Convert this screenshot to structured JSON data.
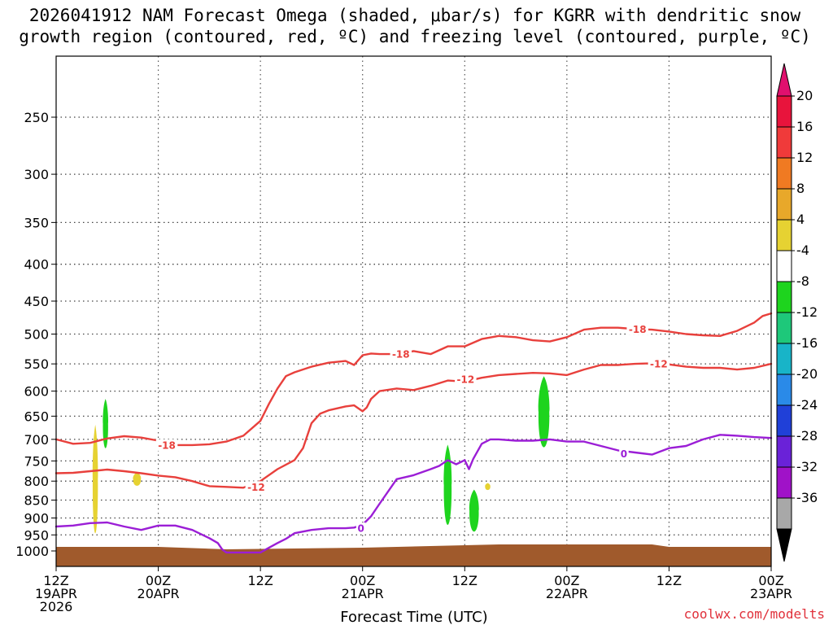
{
  "header": {
    "title_line1": "2026041912 NAM Forecast Omega (shaded, μbar/s) for KGRR with dendritic snow",
    "title_line2": "growth region (contoured, red, ºC) and freezing level (contoured, purple, ºC)"
  },
  "footer": {
    "xlabel": "Forecast Time (UTC)",
    "credit": "coolwx.com/modelts"
  },
  "chart_data": {
    "type": "contour",
    "title": "2026041912 NAM Forecast Omega (shaded, μbar/s) for KGRR with dendritic snow growth region (contoured, red, ºC) and freezing level (contoured, purple, ºC)",
    "xlabel": "Forecast Time (UTC)",
    "ylabel": "",
    "xlim": [
      0,
      84
    ],
    "ylim": [
      1050,
      200
    ],
    "y_scale": "log",
    "grid": true,
    "x_ticks": [
      {
        "hour": 0,
        "top": "12Z",
        "bottom": "19APR",
        "extra": "2026"
      },
      {
        "hour": 12,
        "top": "00Z",
        "bottom": "20APR"
      },
      {
        "hour": 24,
        "top": "12Z",
        "bottom": ""
      },
      {
        "hour": 36,
        "top": "00Z",
        "bottom": "21APR"
      },
      {
        "hour": 48,
        "top": "12Z",
        "bottom": ""
      },
      {
        "hour": 60,
        "top": "00Z",
        "bottom": "22APR"
      },
      {
        "hour": 72,
        "top": "12Z",
        "bottom": ""
      },
      {
        "hour": 84,
        "top": "00Z",
        "bottom": "23APR"
      }
    ],
    "y_ticks": [
      250,
      300,
      350,
      400,
      450,
      500,
      550,
      600,
      650,
      700,
      750,
      800,
      850,
      900,
      950,
      1000
    ],
    "contours": [
      {
        "level": -18,
        "label": "-18",
        "color": "#e8403c",
        "x": [
          0,
          2,
          4,
          6,
          8,
          10,
          12,
          14,
          16,
          18,
          20,
          22,
          24,
          25,
          26,
          27,
          28,
          30,
          32,
          34,
          35,
          36,
          37,
          38,
          40,
          42,
          44,
          46,
          48,
          50,
          52,
          54,
          56,
          58,
          60,
          62,
          64,
          66,
          68,
          70,
          72,
          74,
          76,
          78,
          80,
          82,
          83,
          84
        ],
        "y": [
          700,
          710,
          708,
          698,
          693,
          696,
          703,
          713,
          713,
          711,
          705,
          692,
          660,
          625,
          595,
          572,
          565,
          555,
          548,
          545,
          552,
          535,
          532,
          533,
          533,
          528,
          533,
          520,
          520,
          508,
          503,
          505,
          510,
          512,
          505,
          493,
          490,
          490,
          492,
          493,
          496,
          500,
          502,
          503,
          495,
          482,
          472,
          468
        ],
        "label_at": [
          {
            "x": 13,
            "y": 713
          },
          {
            "x": 40.5,
            "y": 533
          },
          {
            "x": 68.3,
            "y": 492
          }
        ]
      },
      {
        "level": -12,
        "label": "-12",
        "color": "#e8403c",
        "x": [
          0,
          2,
          4,
          6,
          8,
          10,
          12,
          14,
          16,
          18,
          20,
          22,
          24,
          26,
          28,
          29,
          30,
          31,
          32,
          34,
          35,
          36,
          36.5,
          37,
          38,
          40,
          42,
          44,
          46,
          48,
          50,
          52,
          54,
          56,
          58,
          60,
          62,
          64,
          66,
          68,
          70,
          72,
          74,
          76,
          78,
          80,
          82,
          84
        ],
        "y": [
          780,
          779,
          775,
          771,
          775,
          780,
          786,
          790,
          800,
          813,
          815,
          817,
          800,
          770,
          748,
          720,
          665,
          645,
          638,
          630,
          628,
          640,
          632,
          615,
          600,
          595,
          598,
          590,
          580,
          582,
          575,
          570,
          568,
          566,
          567,
          570,
          560,
          552,
          552,
          550,
          549,
          551,
          555,
          557,
          557,
          560,
          557,
          550
        ],
        "label_at": [
          {
            "x": 23.5,
            "y": 815
          },
          {
            "x": 48.1,
            "y": 578
          },
          {
            "x": 70.8,
            "y": 550
          }
        ]
      },
      {
        "level": 0,
        "label": "0",
        "color": "#9b1ed6",
        "x": [
          0,
          2,
          4,
          6,
          8,
          10,
          12,
          14,
          16,
          18,
          19,
          19.5,
          20,
          22,
          24,
          25,
          26,
          27,
          28,
          30,
          32,
          34,
          35,
          36,
          37,
          38,
          40,
          42,
          44,
          45,
          46,
          47,
          48,
          48.5,
          49,
          50,
          51,
          52,
          54,
          56,
          58,
          60,
          62,
          64,
          66,
          68,
          70,
          72,
          74,
          76,
          78,
          80,
          82,
          84
        ],
        "y": [
          925,
          922,
          915,
          913,
          925,
          935,
          922,
          922,
          935,
          960,
          975,
          995,
          1005,
          1005,
          1005,
          990,
          975,
          962,
          945,
          935,
          930,
          930,
          928,
          920,
          895,
          860,
          795,
          785,
          770,
          762,
          748,
          758,
          748,
          770,
          745,
          710,
          700,
          700,
          703,
          703,
          700,
          705,
          705,
          715,
          725,
          730,
          735,
          720,
          715,
          700,
          690,
          692,
          695,
          697
        ],
        "label_at": [
          {
            "x": 35.8,
            "y": 930
          },
          {
            "x": 66.7,
            "y": 733
          }
        ]
      }
    ],
    "shaded": [
      {
        "color": "#e6d232",
        "band": "4 to 8",
        "x": [
          4.6
        ],
        "p_top": 668,
        "p_bottom": 945
      },
      {
        "color": "#e6d232",
        "band": "4 to 8",
        "x": [
          9.0,
          10.0
        ],
        "p_top": 778,
        "p_bottom": 812
      },
      {
        "color": "#1ed41e",
        "band": "-4 to -8",
        "x": [
          5.8
        ],
        "p_top": 615,
        "p_bottom": 720
      },
      {
        "color": "#1ed41e",
        "band": "-4 to -8",
        "x": [
          45.5,
          46.5
        ],
        "p_top": 712,
        "p_bottom": 920
      },
      {
        "color": "#1ed41e",
        "band": "-4 to -8",
        "x": [
          48.5,
          49.7
        ],
        "p_top": 822,
        "p_bottom": 940
      },
      {
        "color": "#1ed41e",
        "band": "-4 to -8",
        "x": [
          56.6,
          58.0
        ],
        "p_top": 572,
        "p_bottom": 718
      },
      {
        "color": "#e6d232",
        "band": "4 to 8",
        "x": [
          50.7
        ],
        "p_top": 805,
        "p_bottom": 823
      }
    ],
    "ground": {
      "color": "#a05a2c",
      "label": "terrain"
    },
    "colorbar": {
      "labels": [
        "20",
        "16",
        "12",
        "8",
        "4",
        "-4",
        "-8",
        "-12",
        "-16",
        "-20",
        "-24",
        "-28",
        "-32",
        "-36"
      ],
      "colors": [
        "#e8143c",
        "#f03a3a",
        "#f07a22",
        "#e8a82a",
        "#e6d232",
        "#ffffff",
        "#1ed41e",
        "#1ec87a",
        "#18b4c8",
        "#2a8ae8",
        "#2040d8",
        "#6a22d8",
        "#a012c8",
        "#a8a8a8"
      ],
      "top_cap_color": "#e0106e",
      "bottom_cap_color": "#000000"
    }
  }
}
